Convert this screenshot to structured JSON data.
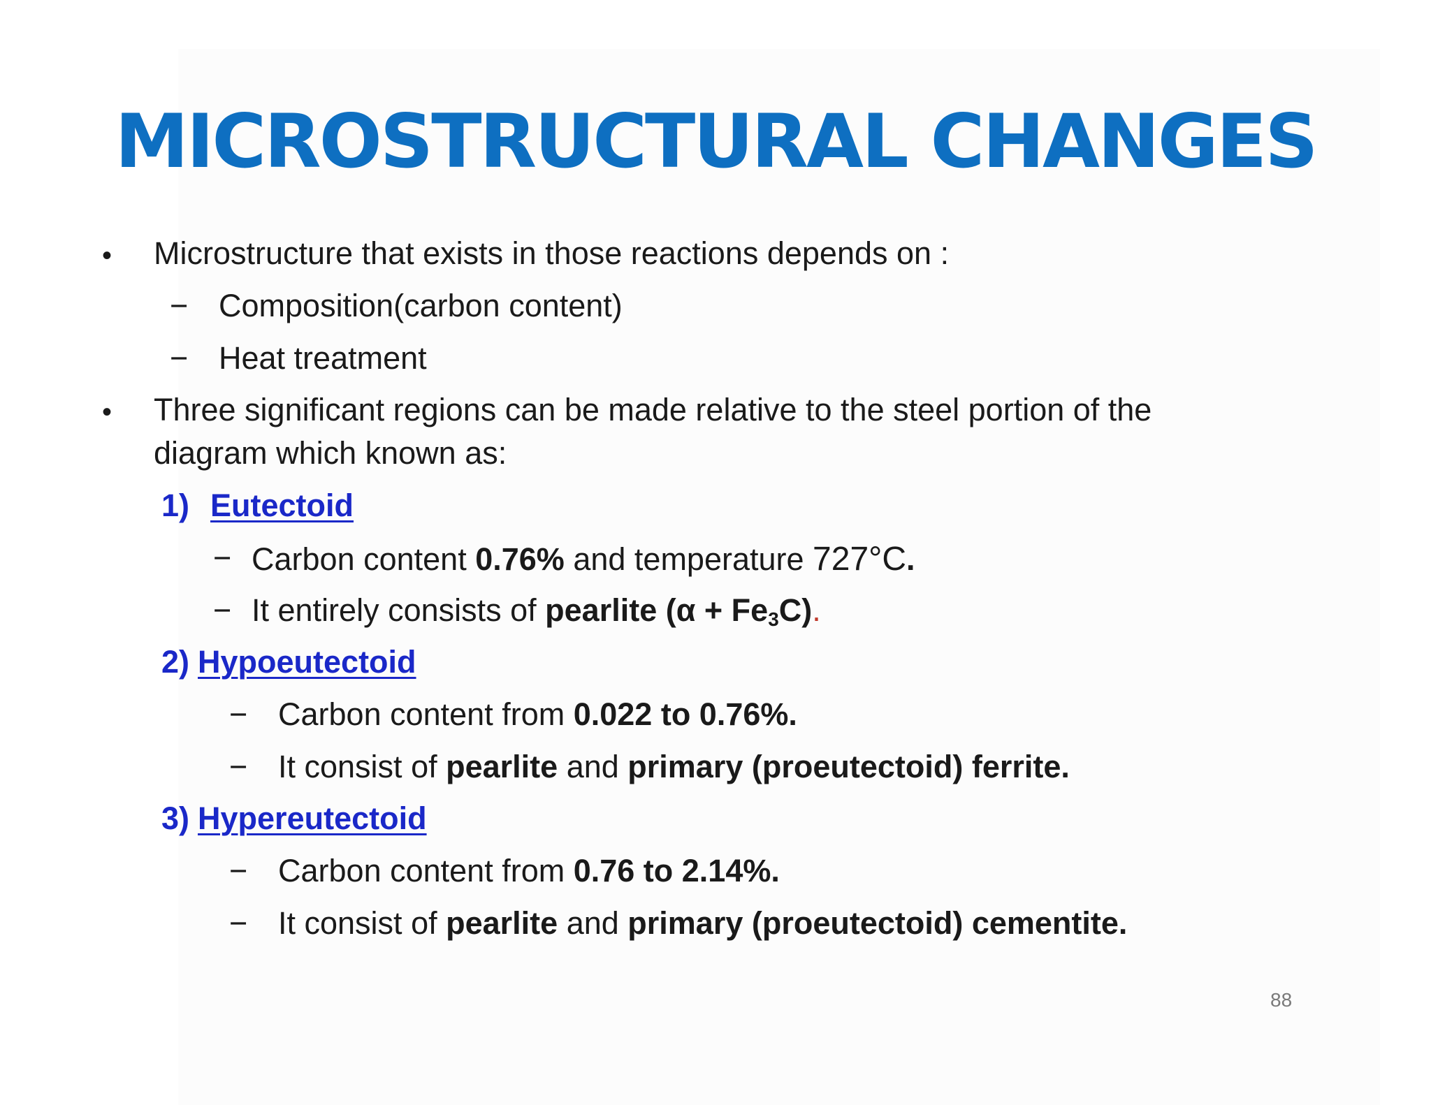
{
  "title": "MICROSTRUCTURAL CHANGES",
  "bullet_symbol": "•",
  "dash_symbol": "−",
  "intro": {
    "text": "Microstructure that exists in those reactions depends on :",
    "items": [
      "Composition(carbon content)",
      "Heat treatment"
    ]
  },
  "regions_intro": {
    "line1": "Three significant regions can be made relative to the steel portion of the",
    "line2": "diagram which known as:"
  },
  "regions": [
    {
      "number": "1)",
      "name": "Eutectoid",
      "item1": {
        "prefix": "Carbon content ",
        "bold": "0.76%",
        "mid": " and temperature ",
        "temp": "727°C",
        "end": "."
      },
      "item2": {
        "prefix": "It entirely consists of ",
        "bold": "pearlite (α + Fe",
        "sub": "3",
        "bold_end": "C)",
        "end": "."
      }
    },
    {
      "number": "2)",
      "name": "Hypoeutectoid",
      "item1": {
        "prefix": "Carbon content from ",
        "bold": "0.022 to 0.76%."
      },
      "item2": {
        "prefix": "It consist of ",
        "bold1": "pearlite",
        "mid": " and ",
        "bold2": "primary (proeutectoid) ferrite."
      }
    },
    {
      "number": "3)",
      "name": "Hypereutectoid",
      "item1": {
        "prefix": "Carbon content from ",
        "bold": "0.76 to 2.14%."
      },
      "item2": {
        "prefix": "It consist of ",
        "bold1": "pearlite",
        "mid": " and ",
        "bold2": "primary (proeutectoid) cementite."
      }
    }
  ],
  "page_number": "88",
  "colors": {
    "title": "#0e6fc1",
    "heading": "#1a28c8",
    "text": "#1a1a1a",
    "accent_red": "#c0392b"
  }
}
